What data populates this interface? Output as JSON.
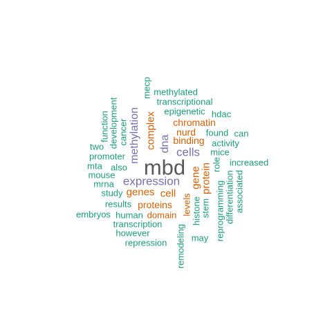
{
  "colors": {
    "c0": "#1b9e77",
    "c1": "#d95f02",
    "c2": "#7570b3",
    "c3": "#595959"
  },
  "words": [
    {
      "text": "mbd",
      "color": "c3"
    },
    {
      "text": "expression",
      "color": "c2"
    },
    {
      "text": "cells",
      "color": "c2"
    },
    {
      "text": "methylation",
      "color": "c2"
    },
    {
      "text": "dna",
      "color": "c2"
    },
    {
      "text": "complex",
      "color": "c1"
    },
    {
      "text": "genes",
      "color": "c1"
    },
    {
      "text": "cell",
      "color": "c1"
    },
    {
      "text": "gene",
      "color": "c1"
    },
    {
      "text": "protein",
      "color": "c1"
    },
    {
      "text": "proteins",
      "color": "c1"
    },
    {
      "text": "binding",
      "color": "c1"
    },
    {
      "text": "chromatin",
      "color": "c1"
    },
    {
      "text": "nurd",
      "color": "c1"
    },
    {
      "text": "domain",
      "color": "c1"
    },
    {
      "text": "levels",
      "color": "c1"
    },
    {
      "text": "methylated",
      "color": "c0"
    },
    {
      "text": "transcriptional",
      "color": "c0"
    },
    {
      "text": "epigenetic",
      "color": "c0"
    },
    {
      "text": "hdac",
      "color": "c0"
    },
    {
      "text": "found",
      "color": "c0"
    },
    {
      "text": "can",
      "color": "c0"
    },
    {
      "text": "activity",
      "color": "c0"
    },
    {
      "text": "mice",
      "color": "c0"
    },
    {
      "text": "increased",
      "color": "c0"
    },
    {
      "text": "role",
      "color": "c0"
    },
    {
      "text": "mecp",
      "color": "c0"
    },
    {
      "text": "function",
      "color": "c0"
    },
    {
      "text": "development",
      "color": "c0"
    },
    {
      "text": "cancer",
      "color": "c0"
    },
    {
      "text": "two",
      "color": "c0"
    },
    {
      "text": "promoter",
      "color": "c0"
    },
    {
      "text": "mta",
      "color": "c0"
    },
    {
      "text": "also",
      "color": "c0"
    },
    {
      "text": "mouse",
      "color": "c0"
    },
    {
      "text": "mrna",
      "color": "c0"
    },
    {
      "text": "study",
      "color": "c0"
    },
    {
      "text": "results",
      "color": "c0"
    },
    {
      "text": "embryos",
      "color": "c0"
    },
    {
      "text": "human",
      "color": "c0"
    },
    {
      "text": "transcription",
      "color": "c0"
    },
    {
      "text": "however",
      "color": "c0"
    },
    {
      "text": "repression",
      "color": "c0"
    },
    {
      "text": "histone",
      "color": "c0"
    },
    {
      "text": "stem",
      "color": "c0"
    },
    {
      "text": "reprogramming",
      "color": "c0"
    },
    {
      "text": "differentiation",
      "color": "c0"
    },
    {
      "text": "associated",
      "color": "c0"
    },
    {
      "text": "remodeling",
      "color": "c0"
    },
    {
      "text": "may",
      "color": "c0"
    }
  ]
}
